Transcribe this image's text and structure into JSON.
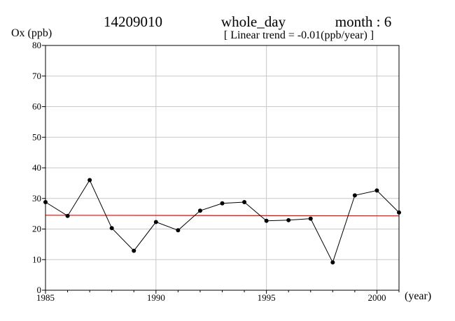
{
  "header": {
    "station": "14209010",
    "period": "whole_day",
    "month_label": "month : 6",
    "trend_label": "[ Linear trend = -0.01(ppb/year) ]"
  },
  "chart_data": {
    "type": "line",
    "ylabel": "Ox (ppb)",
    "xlabel": "(year)",
    "xlim": [
      1985,
      2001
    ],
    "ylim": [
      0,
      80
    ],
    "x_ticks": [
      1985,
      1990,
      1995,
      2000
    ],
    "y_ticks": [
      0,
      10,
      20,
      30,
      40,
      50,
      60,
      70,
      80
    ],
    "grid": true,
    "series": [
      {
        "color": "#000000",
        "x": [
          1985,
          1986,
          1987,
          1988,
          1989,
          1990,
          1991,
          1992,
          1993,
          1994,
          1995,
          1996,
          1997,
          1998,
          1999,
          2000,
          2001
        ],
        "values": [
          28.8,
          24.3,
          36.0,
          20.3,
          12.9,
          22.3,
          19.6,
          26.0,
          28.4,
          28.8,
          22.7,
          22.9,
          23.4,
          9.1,
          31.0,
          32.6,
          25.4
        ]
      }
    ],
    "trend_line": {
      "color": "#ff0000",
      "start": [
        1985,
        24.5
      ],
      "end": [
        2001,
        24.3
      ]
    }
  }
}
